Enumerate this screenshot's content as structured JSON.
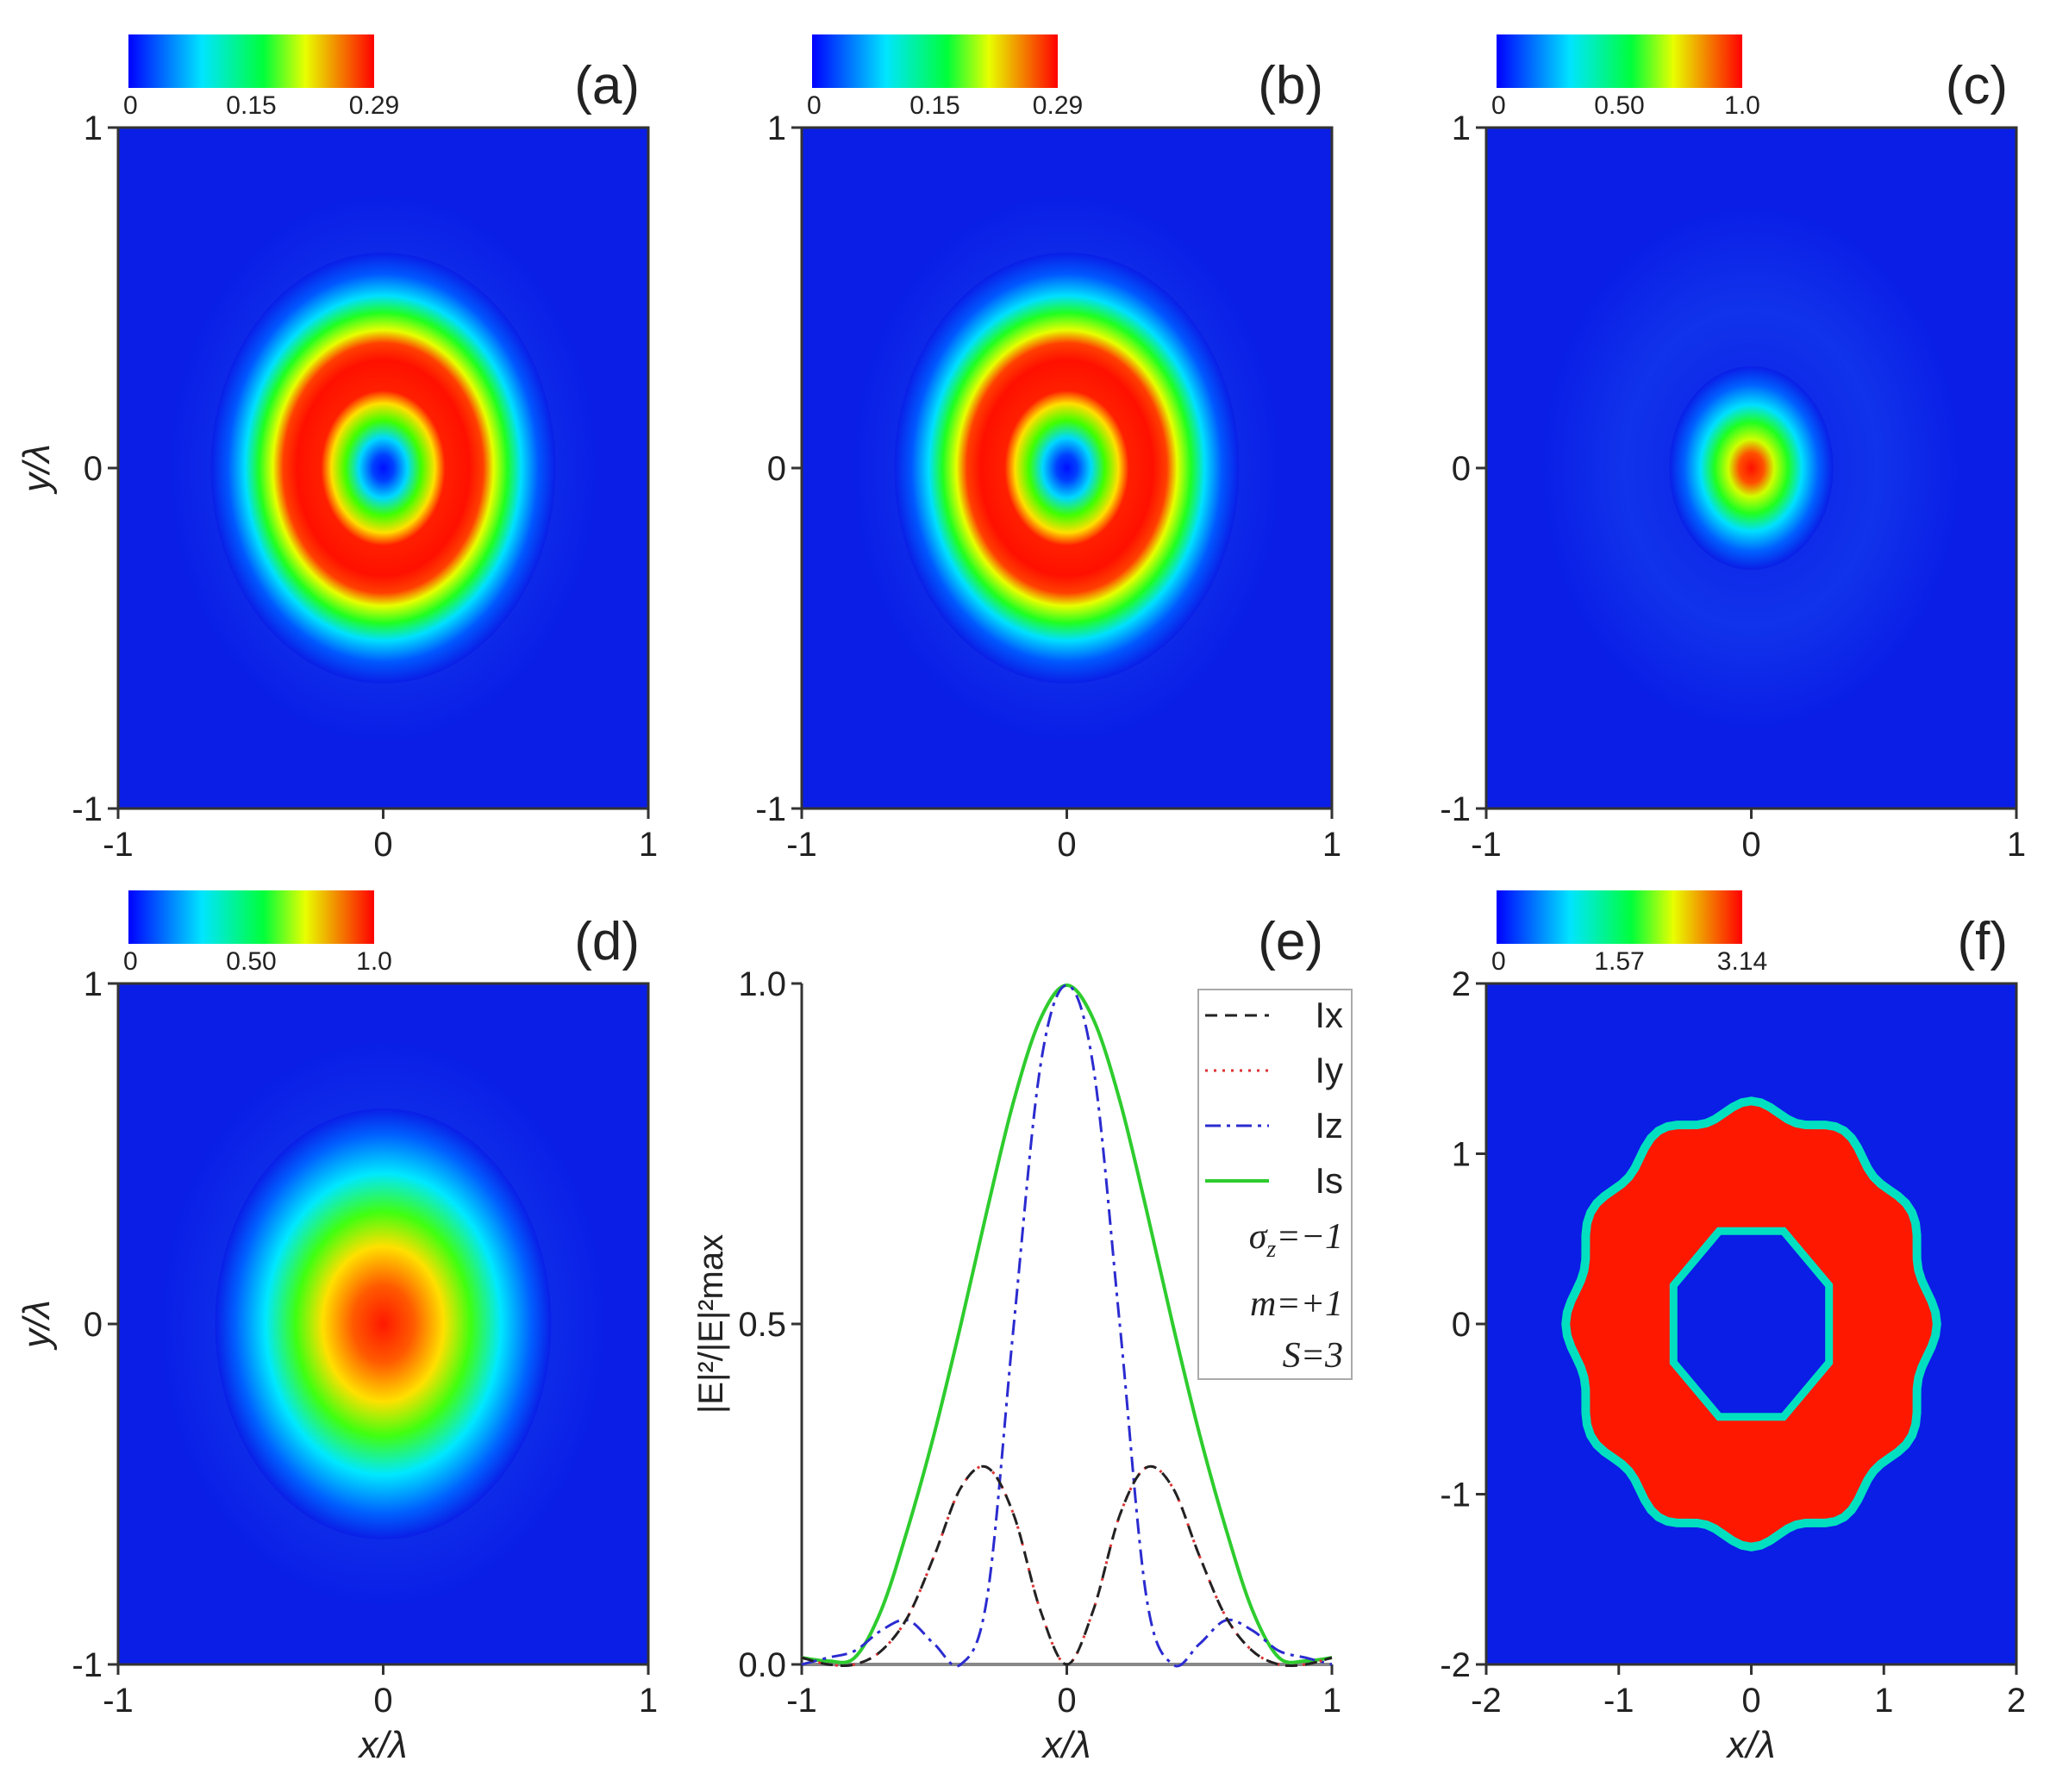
{
  "colors": {
    "field_bg": "#0a1ee6",
    "ring": "#ff1800",
    "ix": "#222222",
    "iy": "#dd3333",
    "iz": "#2b2bd0",
    "is": "#2ecc2e",
    "axis": "#333333",
    "colormap": [
      "#0000ff",
      "#00e0ff",
      "#00ff40",
      "#f0ff00",
      "#ff0000"
    ]
  },
  "panels": [
    {
      "id": "a",
      "label": "(a)",
      "cb_ticks": [
        "0",
        "0.15",
        "0.29"
      ],
      "xlim": [
        -1,
        1
      ],
      "ylim": [
        -1,
        1
      ],
      "xticks": [
        "-1",
        "0",
        "1"
      ],
      "yticks": [
        "1",
        "0",
        "-1"
      ],
      "ylabel": "y/λ",
      "xlabel": "",
      "pattern": "donut"
    },
    {
      "id": "b",
      "label": "(b)",
      "cb_ticks": [
        "0",
        "0.15",
        "0.29"
      ],
      "xlim": [
        -1,
        1
      ],
      "ylim": [
        -1,
        1
      ],
      "xticks": [
        "-1",
        "0",
        "1"
      ],
      "yticks": [
        "1",
        "0",
        "-1"
      ],
      "ylabel": "",
      "xlabel": "",
      "pattern": "donut"
    },
    {
      "id": "c",
      "label": "(c)",
      "cb_ticks": [
        "0",
        "0.50",
        "1.0"
      ],
      "xlim": [
        -1,
        1
      ],
      "ylim": [
        -1,
        1
      ],
      "xticks": [
        "-1",
        "0",
        "1"
      ],
      "yticks": [
        "1",
        "0",
        "-1"
      ],
      "ylabel": "",
      "xlabel": "",
      "pattern": "spot"
    },
    {
      "id": "d",
      "label": "(d)",
      "cb_ticks": [
        "0",
        "0.50",
        "1.0"
      ],
      "xlim": [
        -1,
        1
      ],
      "ylim": [
        -1,
        1
      ],
      "xticks": [
        "-1",
        "0",
        "1"
      ],
      "yticks": [
        "1",
        "0",
        "-1"
      ],
      "ylabel": "y/λ",
      "xlabel": "x/λ",
      "pattern": "broad"
    },
    {
      "id": "f",
      "label": "(f)",
      "cb_ticks": [
        "0",
        "1.57",
        "3.14"
      ],
      "xlim": [
        -2,
        2
      ],
      "ylim": [
        -2,
        2
      ],
      "xticks": [
        "-2",
        "-1",
        "0",
        "1",
        "2"
      ],
      "yticks": [
        "2",
        "1",
        "0",
        "-1",
        "-2"
      ],
      "ylabel": "",
      "xlabel": "x/λ",
      "pattern": "phase"
    }
  ],
  "chart_data": {
    "type": "line",
    "label": "(e)",
    "xlabel": "x/λ",
    "ylabel": "|E|²/|E|²max",
    "xlim": [
      -1,
      1
    ],
    "ylim": [
      0,
      1.0
    ],
    "xticks": [
      "-1",
      "0",
      "1"
    ],
    "yticks": [
      "1.0",
      "0.5",
      "0.0"
    ],
    "x": [
      -1.0,
      -0.9,
      -0.8,
      -0.7,
      -0.6,
      -0.5,
      -0.4,
      -0.3,
      -0.2,
      -0.1,
      0.0,
      0.1,
      0.2,
      0.3,
      0.4,
      0.5,
      0.6,
      0.7,
      0.8,
      0.9,
      1.0
    ],
    "series": [
      {
        "name": "Ix",
        "style": "dashed",
        "values": [
          0.01,
          0.0,
          0.0,
          0.02,
          0.07,
          0.16,
          0.26,
          0.29,
          0.22,
          0.08,
          0.0,
          0.08,
          0.22,
          0.29,
          0.26,
          0.16,
          0.07,
          0.02,
          0.0,
          0.0,
          0.01
        ]
      },
      {
        "name": "Iy",
        "style": "dotted",
        "values": [
          0.01,
          0.0,
          0.0,
          0.02,
          0.07,
          0.16,
          0.26,
          0.29,
          0.22,
          0.08,
          0.0,
          0.08,
          0.22,
          0.29,
          0.26,
          0.16,
          0.07,
          0.02,
          0.0,
          0.0,
          0.01
        ]
      },
      {
        "name": "Iz",
        "style": "dashdot",
        "values": [
          0.0,
          0.01,
          0.02,
          0.05,
          0.065,
          0.03,
          0.0,
          0.1,
          0.5,
          0.88,
          1.0,
          0.88,
          0.5,
          0.1,
          0.0,
          0.03,
          0.065,
          0.05,
          0.02,
          0.01,
          0.0
        ]
      },
      {
        "name": "Is",
        "style": "solid",
        "values": [
          0.01,
          0.005,
          0.01,
          0.08,
          0.2,
          0.34,
          0.5,
          0.67,
          0.83,
          0.95,
          1.0,
          0.95,
          0.83,
          0.67,
          0.5,
          0.34,
          0.2,
          0.08,
          0.01,
          0.005,
          0.01
        ]
      }
    ],
    "legend": [
      "Ix",
      "Iy",
      "Iz",
      "Is"
    ],
    "params": {
      "sigma": "σ",
      "sigma_sub": "z",
      "sigma_val": "=−1",
      "m": "m",
      "m_val": "=+1",
      "s": "S",
      "s_val": "=3"
    }
  }
}
